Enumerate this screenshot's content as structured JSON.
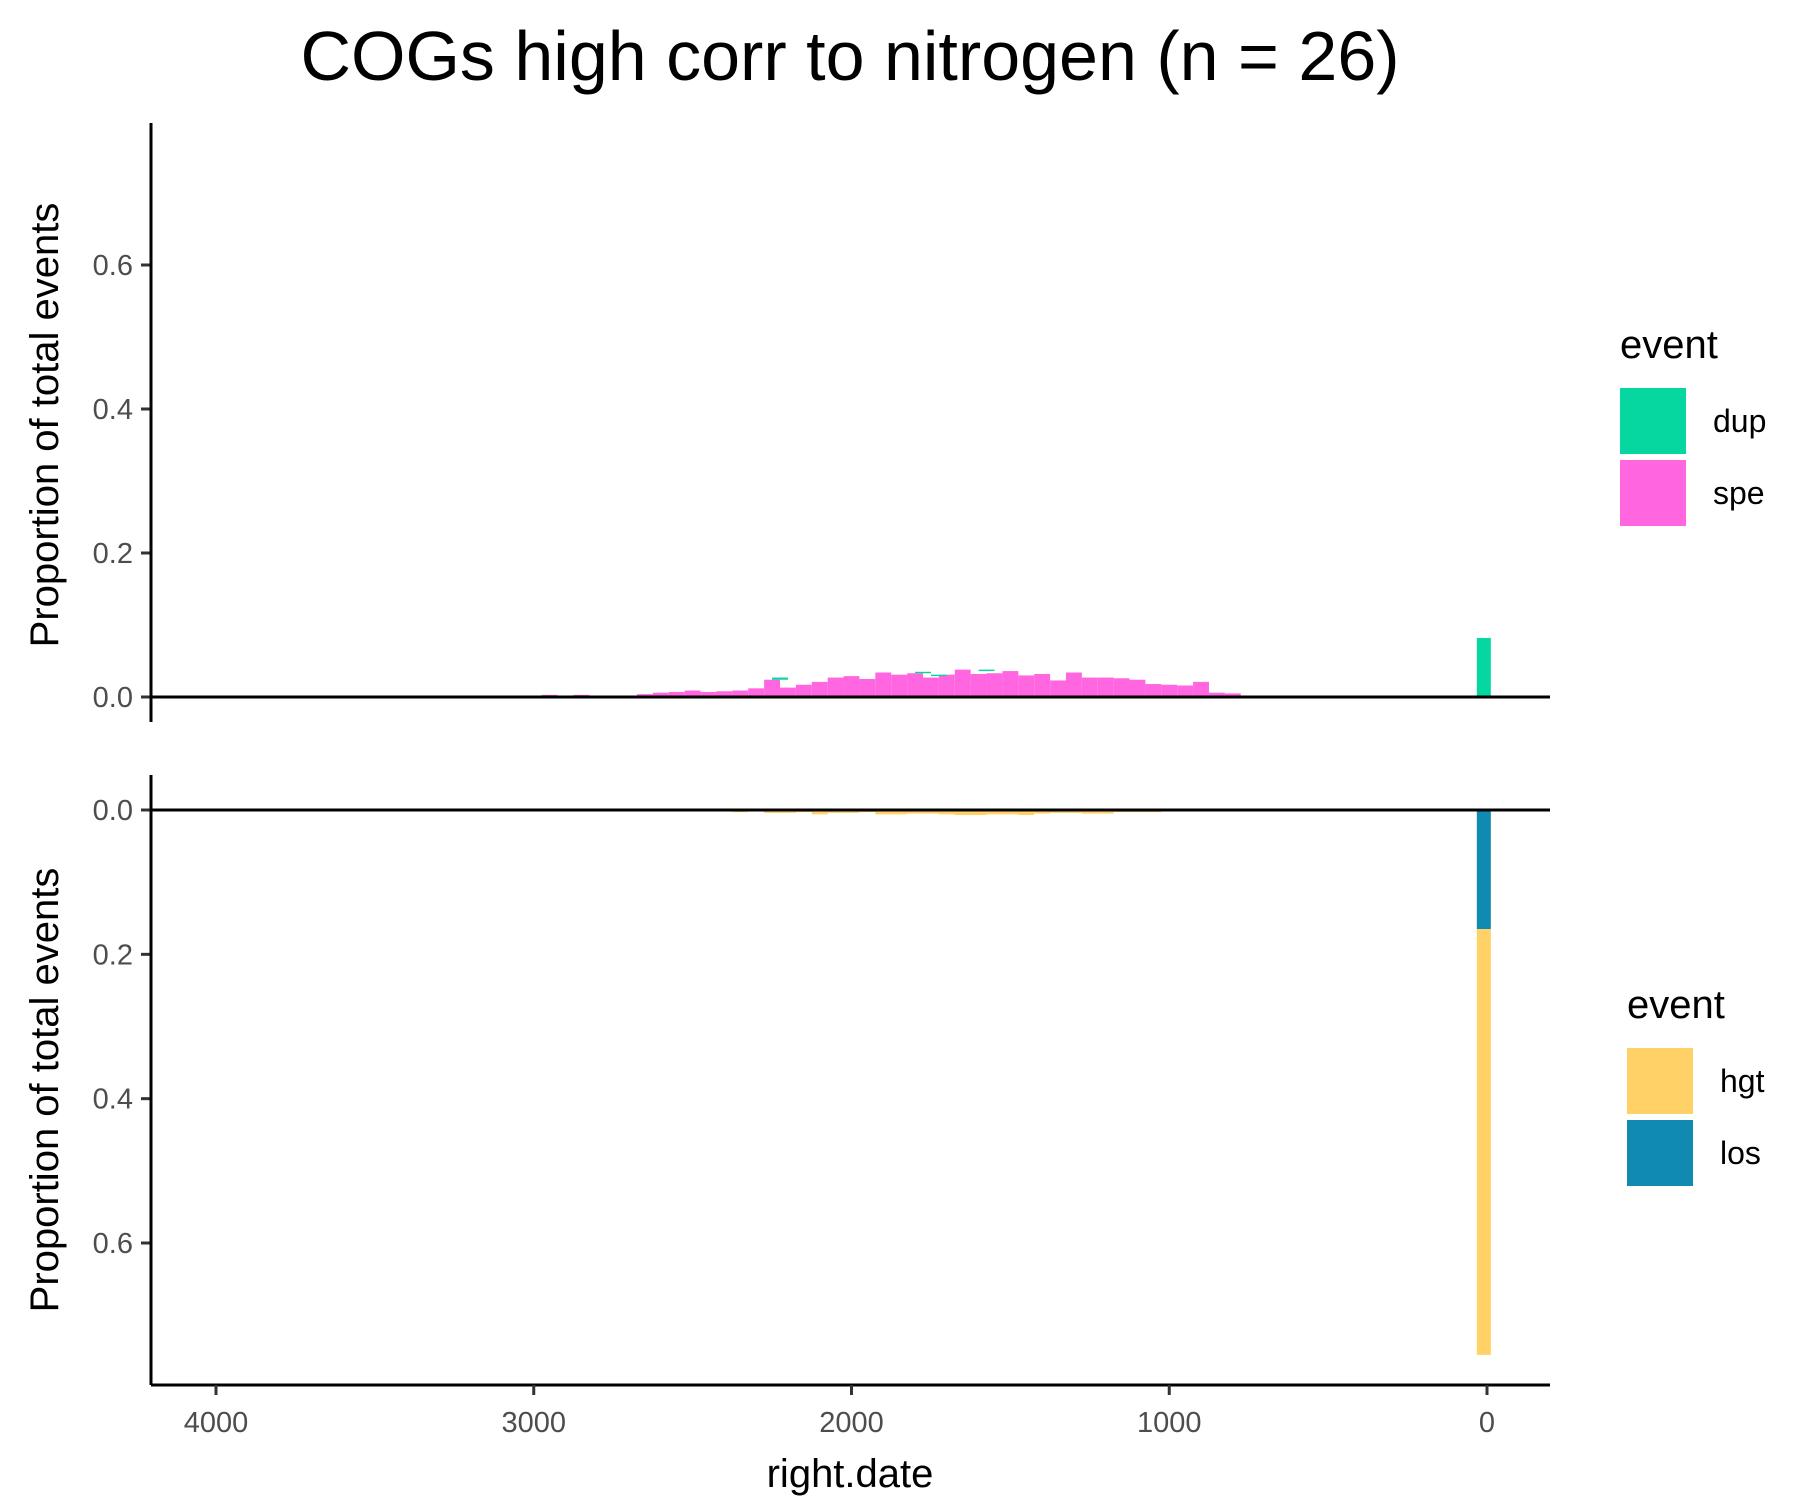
{
  "chart_data": {
    "type": "bar",
    "title": "COGs high corr to nitrogen (n = 26)",
    "xlabel": "right.date",
    "x_ticks": [
      4000,
      3000,
      2000,
      1000,
      0
    ],
    "x_reversed": true,
    "panels": [
      {
        "ylabel": "Proportion of total events",
        "y_ticks": [
          "0.0",
          "0.2",
          "0.4",
          "0.6"
        ],
        "y_tick_values": [
          0.0,
          0.2,
          0.4,
          0.6
        ],
        "ylim": [
          -0.0,
          0.8
        ],
        "direction": "up",
        "legend_title": "event",
        "legend": [
          {
            "label": "dup",
            "color": "#06D6A0"
          },
          {
            "label": "spe",
            "color": "#FF66E0"
          }
        ],
        "series": [
          {
            "name": "spe",
            "x": [
              3250,
              3150,
              3050,
              2950,
              2850,
              2750,
              2650,
              2600,
              2550,
              2500,
              2450,
              2400,
              2350,
              2300,
              2250,
              2200,
              2150,
              2100,
              2050,
              2000,
              1950,
              1900,
              1850,
              1800,
              1750,
              1700,
              1650,
              1600,
              1550,
              1500,
              1450,
              1400,
              1350,
              1300,
              1250,
              1200,
              1150,
              1100,
              1050,
              1000,
              950,
              900,
              850,
              800,
              750,
              600
            ],
            "values": [
              0.002,
              0.002,
              0.002,
              0.003,
              0.003,
              0.002,
              0.004,
              0.006,
              0.007,
              0.009,
              0.007,
              0.008,
              0.009,
              0.012,
              0.024,
              0.013,
              0.017,
              0.021,
              0.027,
              0.029,
              0.025,
              0.034,
              0.031,
              0.033,
              0.027,
              0.031,
              0.038,
              0.032,
              0.033,
              0.036,
              0.03,
              0.032,
              0.023,
              0.034,
              0.027,
              0.027,
              0.026,
              0.024,
              0.018,
              0.017,
              0.016,
              0.021,
              0.006,
              0.005,
              0.002,
              0.002
            ],
            "color": "#FF66E0"
          },
          {
            "name": "dup",
            "x": [
              2225,
              1775,
              1725,
              1575,
              10
            ],
            "values": [
              0.003,
              0.002,
              0.002,
              0.002,
              0.082
            ],
            "base": [
              0.024,
              0.033,
              0.029,
              0.036,
              0.0
            ],
            "color": "#06D6A0"
          }
        ]
      },
      {
        "ylabel": "Proportion of total events",
        "y_ticks": [
          "0.0",
          "0.2",
          "0.4",
          "0.6"
        ],
        "y_tick_values": [
          0.0,
          0.2,
          0.4,
          0.6
        ],
        "ylim": [
          0.0,
          0.8
        ],
        "direction": "down",
        "legend_title": "event",
        "legend": [
          {
            "label": "hgt",
            "color": "#FFD166"
          },
          {
            "label": "los",
            "color": "#118AB2"
          }
        ],
        "series": [
          {
            "name": "los",
            "x": [
              1875,
              1825,
              1775,
              1675,
              1625,
              1575,
              1475,
              1375,
              10
            ],
            "values": [
              0.002,
              0.002,
              0.002,
              0.002,
              0.002,
              0.002,
              0.003,
              0.003,
              0.165
            ],
            "color": "#118AB2"
          },
          {
            "name": "hgt",
            "x": [
              2500,
              2450,
              2350,
              2300,
              2250,
              2200,
              2150,
              2100,
              2050,
              2000,
              1950,
              1900,
              1850,
              1800,
              1750,
              1700,
              1650,
              1600,
              1550,
              1500,
              1450,
              1400,
              1350,
              1300,
              1250,
              1200,
              1150,
              1100,
              1050,
              1000,
              950,
              900
            ],
            "values": [
              0.001,
              0.001,
              0.003,
              0.002,
              0.004,
              0.004,
              0.003,
              0.006,
              0.004,
              0.004,
              0.003,
              0.006,
              0.006,
              0.005,
              0.005,
              0.006,
              0.007,
              0.007,
              0.006,
              0.006,
              0.007,
              0.005,
              0.004,
              0.004,
              0.005,
              0.005,
              0.003,
              0.003,
              0.003,
              0.002,
              0.002,
              0.001
            ],
            "color": "#FFD166"
          },
          {
            "name": "hgt-recent",
            "x": [
              10
            ],
            "values": [
              0.59
            ],
            "base": [
              0.165
            ],
            "color": "#FFD166"
          }
        ]
      }
    ]
  }
}
